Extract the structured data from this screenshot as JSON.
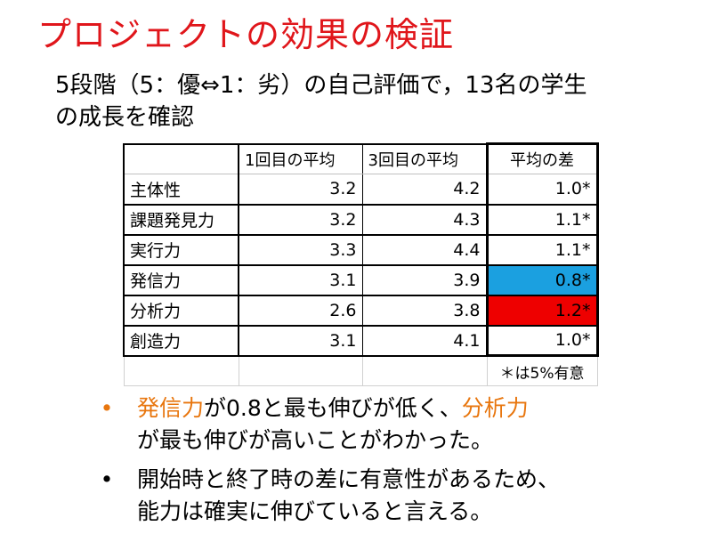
{
  "slide": {
    "title": "プロジェクトの効果の検証",
    "intro_line1": "5段階（5：優⇔1：劣）の自己評価で，13名の学生",
    "intro_line2": "の成長を確認"
  },
  "table": {
    "headers": [
      "",
      "1回目の平均",
      "3回目の平均",
      "平均の差"
    ],
    "rows": [
      {
        "label": "主体性",
        "first": "3.2",
        "third": "4.2",
        "diff": "1.0*",
        "highlight": ""
      },
      {
        "label": "課題発見力",
        "first": "3.2",
        "third": "4.3",
        "diff": "1.1*",
        "highlight": ""
      },
      {
        "label": "実行力",
        "first": "3.3",
        "third": "4.4",
        "diff": "1.1*",
        "highlight": ""
      },
      {
        "label": "発信力",
        "first": "3.1",
        "third": "3.9",
        "diff": "0.8*",
        "highlight": "blue"
      },
      {
        "label": "分析力",
        "first": "2.6",
        "third": "3.8",
        "diff": "1.2*",
        "highlight": "red"
      },
      {
        "label": "創造力",
        "first": "3.1",
        "third": "4.1",
        "diff": "1.0*",
        "highlight": ""
      }
    ],
    "footnote": "＊は5%有意",
    "highlight_colors": {
      "blue": "#1ba0e0",
      "red": "#ee0000"
    }
  },
  "bullets": [
    {
      "line1_a": "発信力",
      "line1_b": "が0.8と最も伸びが低く、",
      "line1_c": "分析力",
      "line2": "が最も伸びが高いことがわかった。"
    },
    {
      "line1": "開始時と終了時の差に有意性があるため、",
      "line2": "能力は確実に伸びていると言える。"
    }
  ],
  "colors": {
    "title": "#e0161b",
    "accent": "#e8760e"
  }
}
